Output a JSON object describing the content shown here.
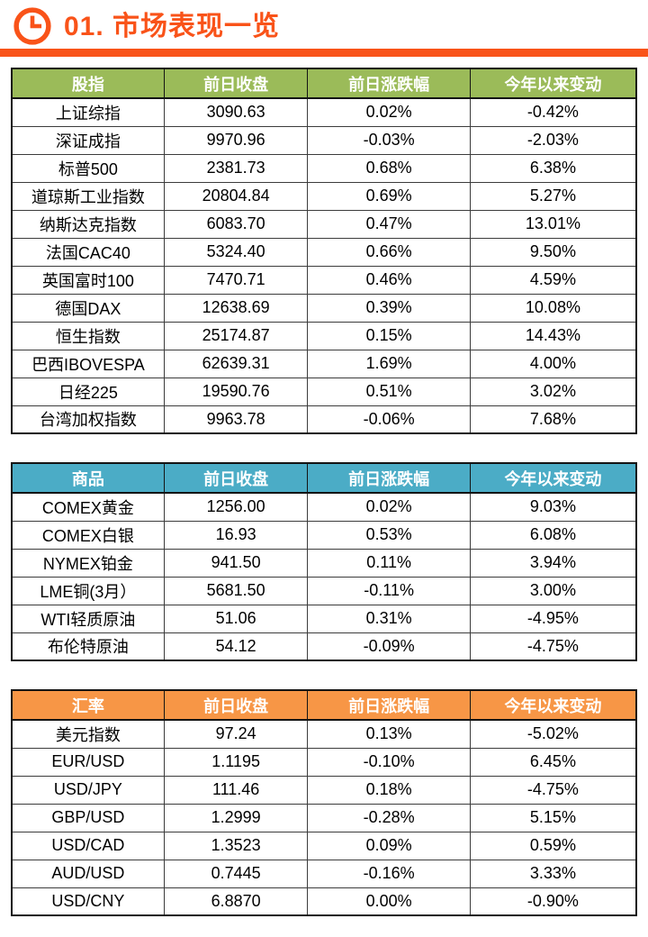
{
  "page": {
    "title": "01. 市场表现一览",
    "accent_color": "#F95319"
  },
  "tables": [
    {
      "name": "stock-indices",
      "header_color": "#9BBB59",
      "columns": [
        "股指",
        "前日收盘",
        "前日涨跌幅",
        "今年以来变动"
      ],
      "rows": [
        [
          "上证综指",
          "3090.63",
          "0.02%",
          "-0.42%"
        ],
        [
          "深证成指",
          "9970.96",
          "-0.03%",
          "-2.03%"
        ],
        [
          "标普500",
          "2381.73",
          "0.68%",
          "6.38%"
        ],
        [
          "道琼斯工业指数",
          "20804.84",
          "0.69%",
          "5.27%"
        ],
        [
          "纳斯达克指数",
          "6083.70",
          "0.47%",
          "13.01%"
        ],
        [
          "法国CAC40",
          "5324.40",
          "0.66%",
          "9.50%"
        ],
        [
          "英国富时100",
          "7470.71",
          "0.46%",
          "4.59%"
        ],
        [
          "德国DAX",
          "12638.69",
          "0.39%",
          "10.08%"
        ],
        [
          "恒生指数",
          "25174.87",
          "0.15%",
          "14.43%"
        ],
        [
          "巴西IBOVESPA",
          "62639.31",
          "1.69%",
          "4.00%"
        ],
        [
          "日经225",
          "19590.76",
          "0.51%",
          "3.02%"
        ],
        [
          "台湾加权指数",
          "9963.78",
          "-0.06%",
          "7.68%"
        ]
      ]
    },
    {
      "name": "commodities",
      "header_color": "#4BACC6",
      "columns": [
        "商品",
        "前日收盘",
        "前日涨跌幅",
        "今年以来变动"
      ],
      "rows": [
        [
          "COMEX黄金",
          "1256.00",
          "0.02%",
          "9.03%"
        ],
        [
          "COMEX白银",
          "16.93",
          "0.53%",
          "6.08%"
        ],
        [
          "NYMEX铂金",
          "941.50",
          "0.11%",
          "3.94%"
        ],
        [
          "LME铜(3月）",
          "5681.50",
          "-0.11%",
          "3.00%"
        ],
        [
          "WTI轻质原油",
          "51.06",
          "0.31%",
          "-4.95%"
        ],
        [
          "布伦特原油",
          "54.12",
          "-0.09%",
          "-4.75%"
        ]
      ]
    },
    {
      "name": "forex",
      "header_color": "#F79646",
      "columns": [
        "汇率",
        "前日收盘",
        "前日涨跌幅",
        "今年以来变动"
      ],
      "rows": [
        [
          "美元指数",
          "97.24",
          "0.13%",
          "-5.02%"
        ],
        [
          "EUR/USD",
          "1.1195",
          "-0.10%",
          "6.45%"
        ],
        [
          "USD/JPY",
          "111.46",
          "0.18%",
          "-4.75%"
        ],
        [
          "GBP/USD",
          "1.2999",
          "-0.28%",
          "5.15%"
        ],
        [
          "USD/CAD",
          "1.3523",
          "0.09%",
          "0.59%"
        ],
        [
          "AUD/USD",
          "0.7445",
          "-0.16%",
          "3.33%"
        ],
        [
          "USD/CNY",
          "6.8870",
          "0.00%",
          "-0.90%"
        ]
      ]
    }
  ]
}
